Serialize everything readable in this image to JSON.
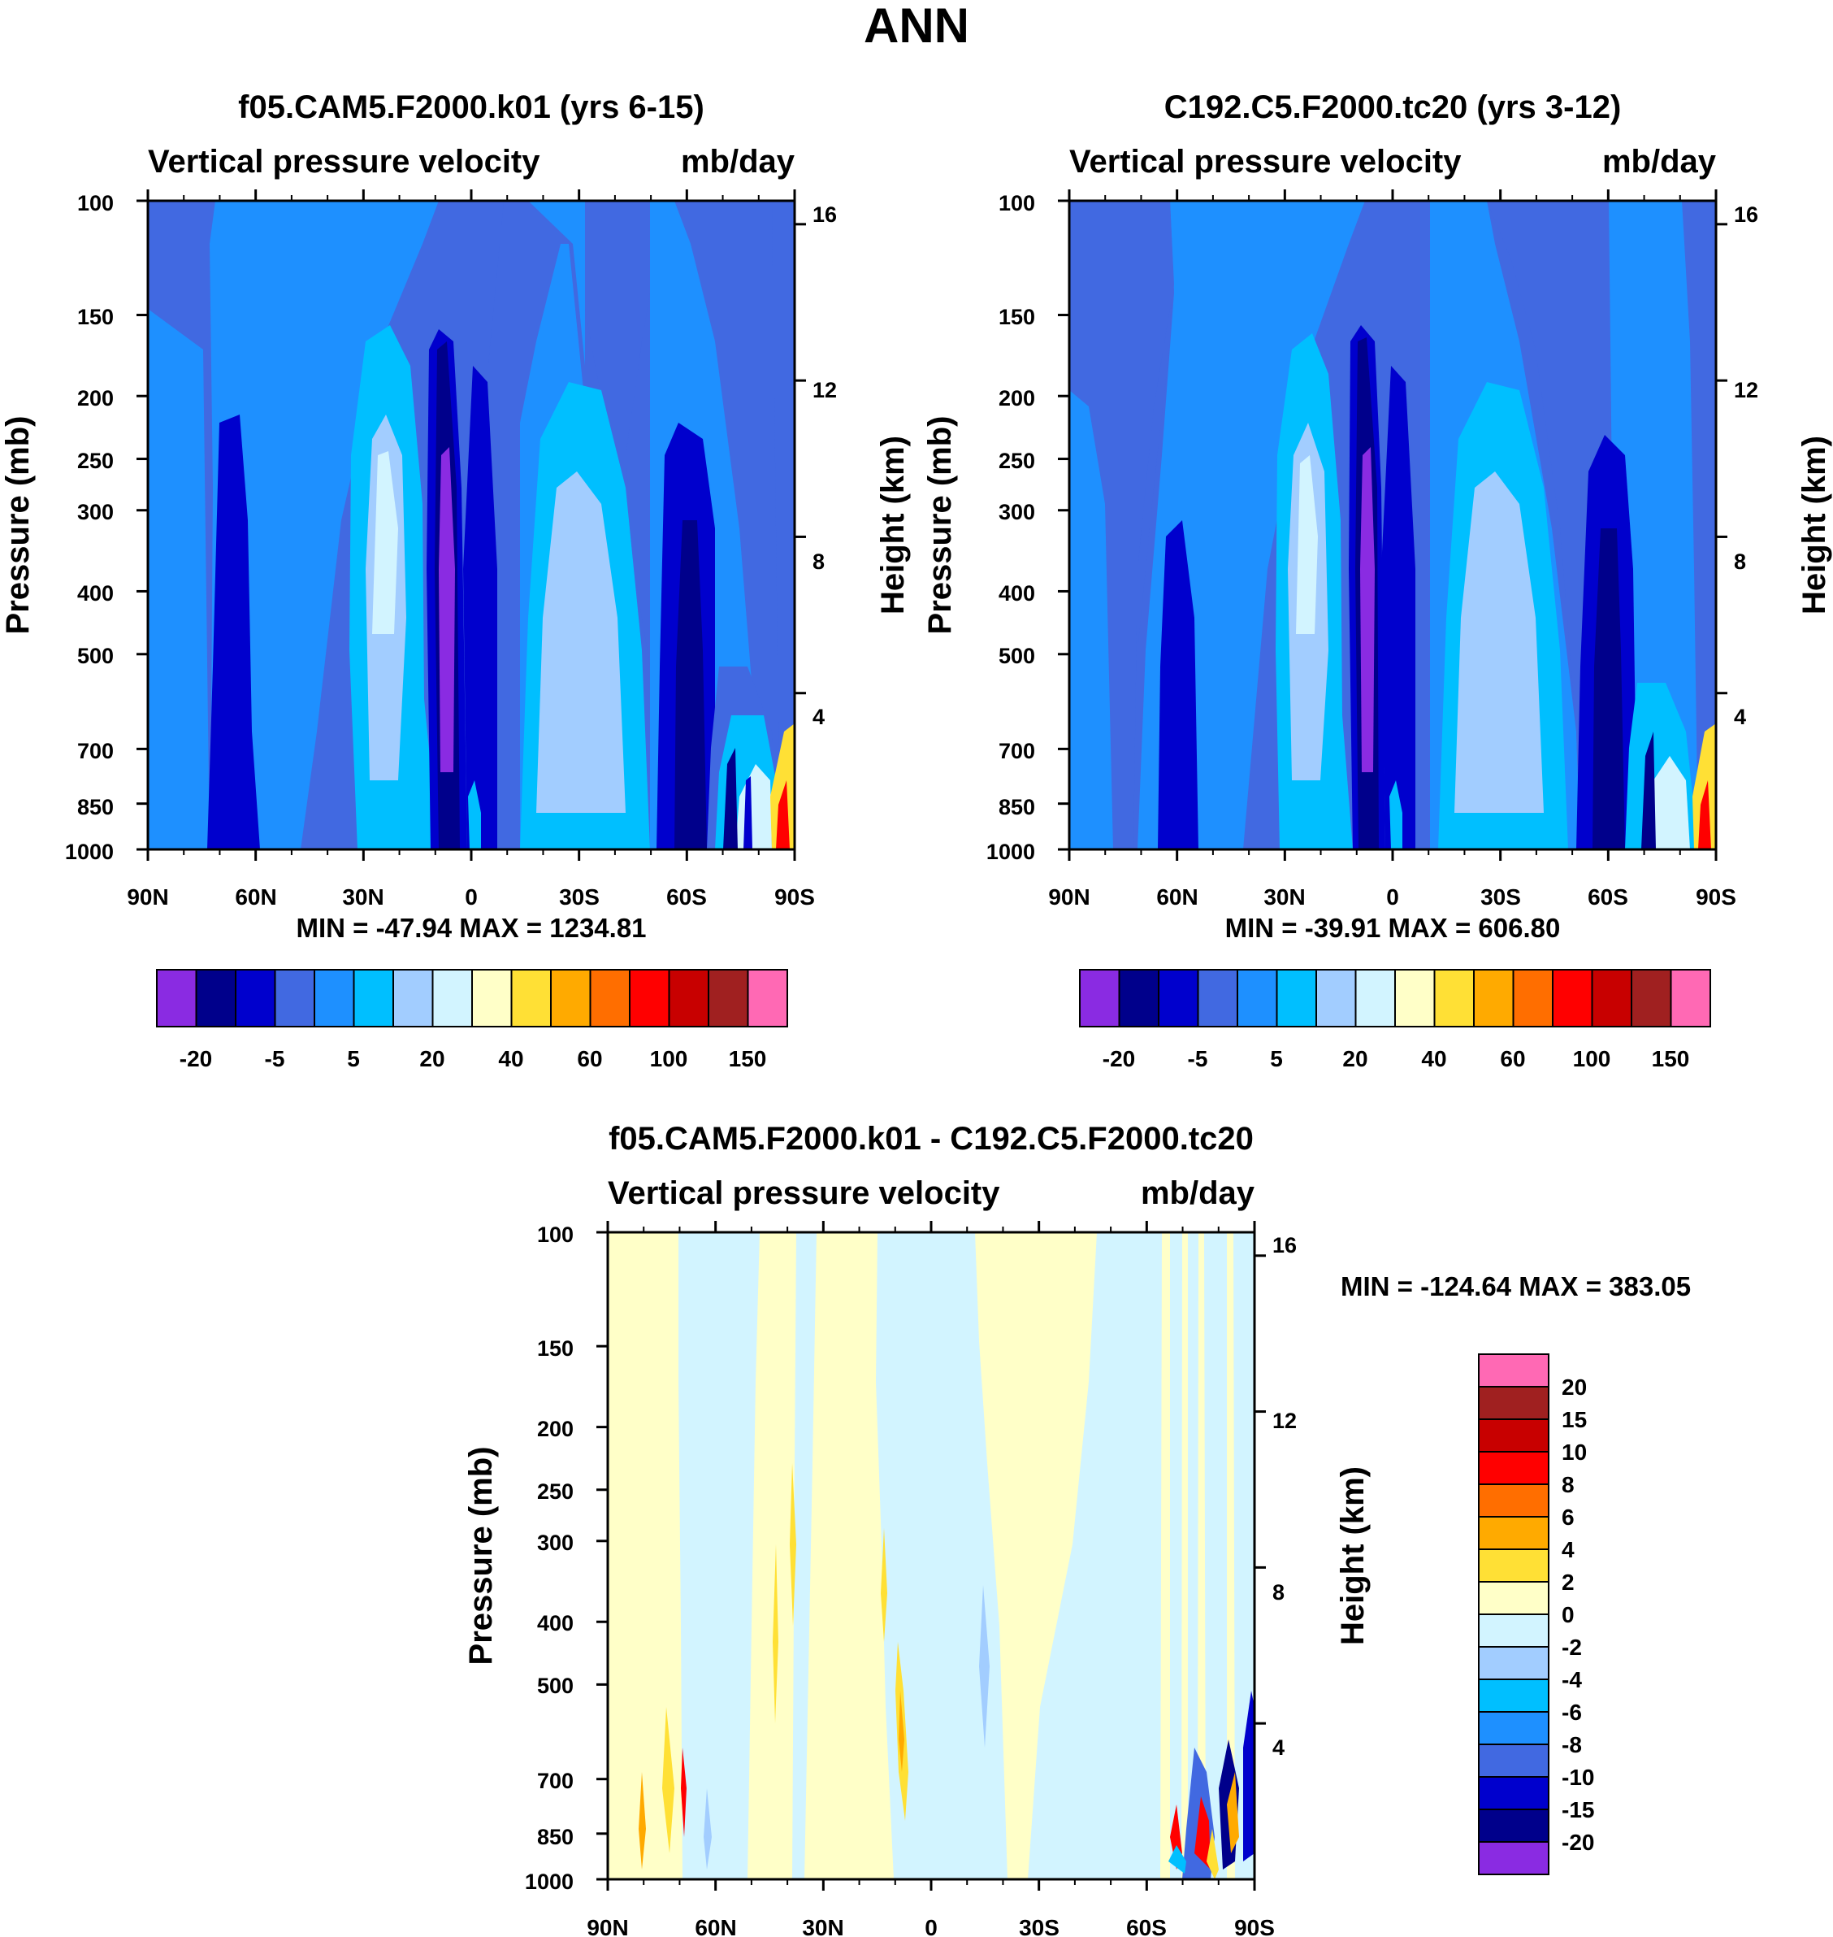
{
  "title": "ANN",
  "colors": {
    "abs": [
      "#8a2be2",
      "#00008b",
      "#0000cd",
      "#4169e1",
      "#1e90ff",
      "#00bfff",
      "#a2cdff",
      "#d2f4ff",
      "#ffffc8",
      "#ffe035",
      "#ffaa00",
      "#ff6e00",
      "#ff0000",
      "#c80000",
      "#a02020",
      "#ff69b4"
    ],
    "diff": [
      "#8a2be2",
      "#00008b",
      "#0000cd",
      "#4169e1",
      "#1e90ff",
      "#00bfff",
      "#a2cdff",
      "#d2f4ff",
      "#ffffc8",
      "#ffe035",
      "#ffaa00",
      "#ff6e00",
      "#ff0000",
      "#c80000",
      "#a02020",
      "#ff69b4"
    ]
  },
  "chart_data": [
    {
      "type": "heatmap",
      "title": "f05.CAM5.F2000.k01 (yrs 6-15)",
      "left_string": "Vertical pressure velocity",
      "right_string": "mb/day",
      "ylabel": "Pressure (mb)",
      "ylabel_right": "Height (km)",
      "x_ticks": [
        "90N",
        "60N",
        "30N",
        "0",
        "30S",
        "60S",
        "90S"
      ],
      "y_ticks": [
        100,
        150,
        200,
        250,
        300,
        400,
        500,
        700,
        850,
        1000
      ],
      "y_right_ticks": [
        4,
        8,
        12,
        16
      ],
      "ylim": [
        1000,
        100
      ],
      "xlim": [
        90,
        -90
      ],
      "stats": "MIN = -47.94  MAX = 1234.81",
      "colorbar_labels": [
        "-20",
        "-5",
        "5",
        "20",
        "40",
        "60",
        "100",
        "150"
      ]
    },
    {
      "type": "heatmap",
      "title": "C192.C5.F2000.tc20 (yrs 3-12)",
      "left_string": "Vertical pressure velocity",
      "right_string": "mb/day",
      "ylabel": "Pressure (mb)",
      "ylabel_right": "Height (km)",
      "x_ticks": [
        "90N",
        "60N",
        "30N",
        "0",
        "30S",
        "60S",
        "90S"
      ],
      "y_ticks": [
        100,
        150,
        200,
        250,
        300,
        400,
        500,
        700,
        850,
        1000
      ],
      "y_right_ticks": [
        4,
        8,
        12,
        16
      ],
      "ylim": [
        1000,
        100
      ],
      "xlim": [
        90,
        -90
      ],
      "stats": "MIN = -39.91  MAX = 606.80",
      "colorbar_labels": [
        "-20",
        "-5",
        "5",
        "20",
        "40",
        "60",
        "100",
        "150"
      ]
    },
    {
      "type": "heatmap",
      "title": "f05.CAM5.F2000.k01 - C192.C5.F2000.tc20",
      "left_string": "Vertical pressure velocity",
      "right_string": "mb/day",
      "ylabel": "Pressure (mb)",
      "ylabel_right": "Height (km)",
      "x_ticks": [
        "90N",
        "60N",
        "30N",
        "0",
        "30S",
        "60S",
        "90S"
      ],
      "y_ticks": [
        100,
        150,
        200,
        250,
        300,
        400,
        500,
        700,
        850,
        1000
      ],
      "y_right_ticks": [
        4,
        8,
        12,
        16
      ],
      "ylim": [
        1000,
        100
      ],
      "xlim": [
        90,
        -90
      ],
      "stats": "MIN = -124.64  MAX = 383.05",
      "colorbar_labels": [
        "20",
        "15",
        "10",
        "8",
        "6",
        "4",
        "2",
        "0",
        "-2",
        "-4",
        "-6",
        "-8",
        "-10",
        "-15",
        "-20"
      ]
    }
  ]
}
